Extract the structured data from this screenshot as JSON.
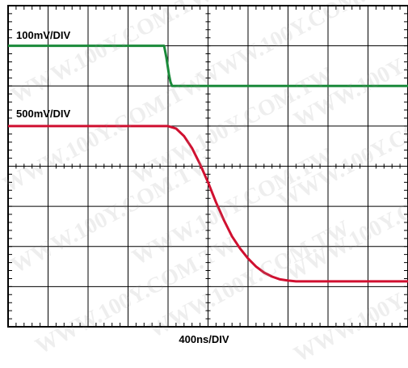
{
  "chart_data": {
    "type": "line",
    "grid": true,
    "divisions": {
      "x": 10,
      "y": 8
    },
    "x_range_div": [
      0,
      10
    ],
    "y_range_div": [
      -4,
      4
    ],
    "xlabel": "400ns/DIV",
    "series": [
      {
        "channel_label": "100mV/DIV",
        "color": "#1a8a3a",
        "x_div": [
          0,
          3.9,
          3.96,
          4.02,
          4.06,
          4.1,
          10
        ],
        "y_div": [
          3.0,
          3.0,
          2.7,
          2.3,
          2.1,
          2.0,
          2.0
        ]
      },
      {
        "channel_label": "500mV/DIV",
        "color": "#d01030",
        "x_div": [
          0,
          4.0,
          4.2,
          4.4,
          4.6,
          4.8,
          5.0,
          5.2,
          5.4,
          5.6,
          5.8,
          6.0,
          6.2,
          6.4,
          6.6,
          6.8,
          7.0,
          7.2,
          10
        ],
        "y_div": [
          1.0,
          1.0,
          0.94,
          0.75,
          0.45,
          0.05,
          -0.4,
          -0.9,
          -1.35,
          -1.75,
          -2.05,
          -2.3,
          -2.5,
          -2.65,
          -2.75,
          -2.82,
          -2.85,
          -2.87,
          -2.87
        ]
      }
    ]
  },
  "watermark": "WWW.100Y.COM.TW"
}
